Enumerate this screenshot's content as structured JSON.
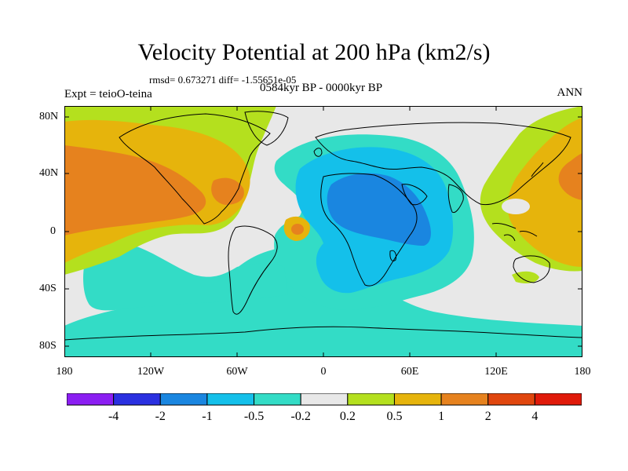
{
  "title": "Velocity Potential at 200 hPa (km2/s)",
  "stats": "rmsd= 0.673271 diff= -1.55651e-05",
  "expt": "Expt = teioO-teina",
  "period": "0584kyr BP - 0000kyr BP",
  "season": "ANN",
  "lat_ticks": [
    "80N",
    "40N",
    "0",
    "40S",
    "80S"
  ],
  "lon_ticks": [
    "180",
    "120W",
    "60W",
    "0",
    "60E",
    "120E",
    "180"
  ],
  "colorbar": {
    "labels": [
      "-4",
      "-2",
      "-1",
      "-0.5",
      "-0.2",
      "0.2",
      "0.5",
      "1",
      "2",
      "4"
    ],
    "colors": [
      "#8b1ef2",
      "#2a30e0",
      "#1a86e0",
      "#14c0ea",
      "#33dcc6",
      "#e8e8e8",
      "#b4e01e",
      "#e6b40c",
      "#e6821e",
      "#e0460e",
      "#e01a0a"
    ]
  }
}
